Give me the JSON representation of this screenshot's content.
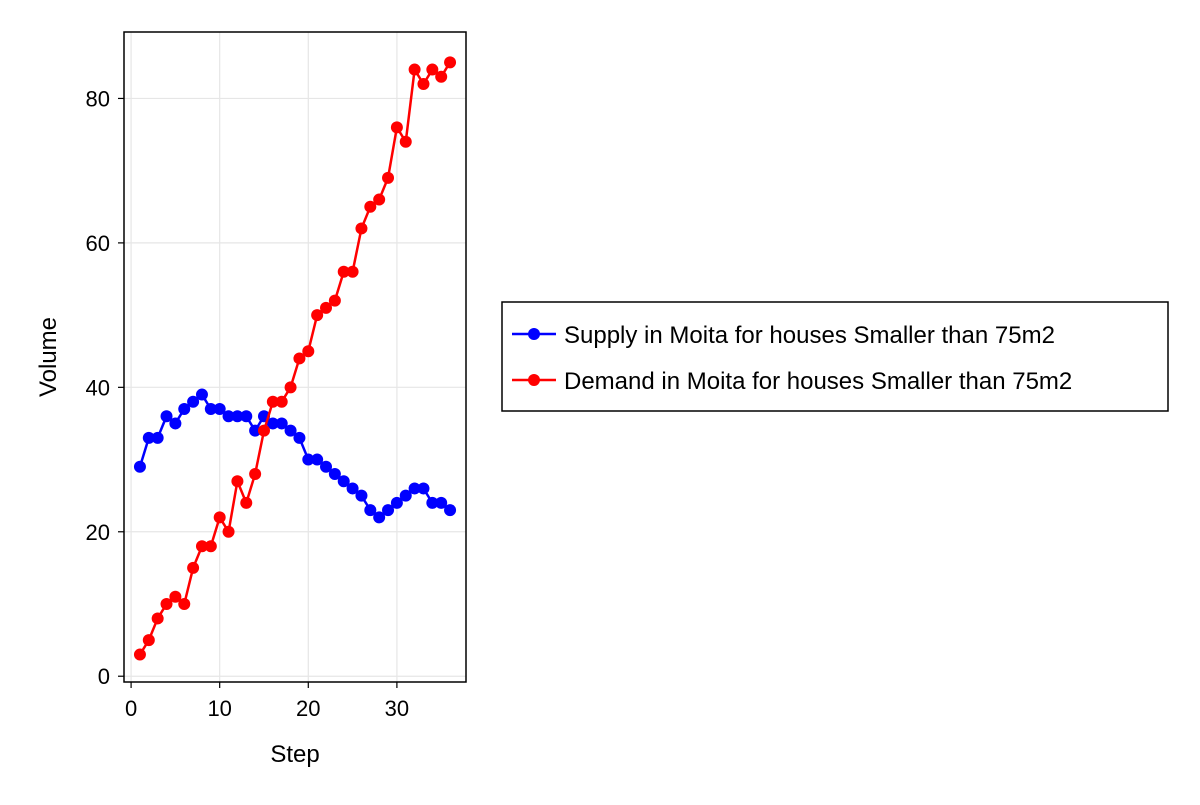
{
  "chart_data": {
    "type": "line",
    "title": "",
    "xlabel": "Step",
    "ylabel": "Volume",
    "xlim": [
      -0.8,
      37.8
    ],
    "ylim": [
      -0.8,
      89.2
    ],
    "xticks": [
      0,
      10,
      20,
      30
    ],
    "yticks": [
      0,
      20,
      40,
      60,
      80
    ],
    "grid": true,
    "legend_position": "right",
    "series": [
      {
        "name": "Supply in Moita for houses Smaller than 75m2",
        "color": "#0000ff",
        "x": [
          1,
          2,
          3,
          4,
          5,
          6,
          7,
          8,
          9,
          10,
          11,
          12,
          13,
          14,
          15,
          16,
          17,
          18,
          19,
          20,
          21,
          22,
          23,
          24,
          25,
          26,
          27,
          28,
          29,
          30,
          31,
          32,
          33,
          34,
          35,
          36
        ],
        "y": [
          29,
          33,
          33,
          36,
          35,
          37,
          38,
          39,
          37,
          37,
          36,
          36,
          36,
          34,
          36,
          35,
          35,
          34,
          33,
          30,
          30,
          29,
          28,
          27,
          26,
          25,
          23,
          22,
          23,
          24,
          25,
          26,
          26,
          24,
          24,
          23
        ]
      },
      {
        "name": "Demand in Moita for houses Smaller than 75m2",
        "color": "#ff0000",
        "x": [
          1,
          2,
          3,
          4,
          5,
          6,
          7,
          8,
          9,
          10,
          11,
          12,
          13,
          14,
          15,
          16,
          17,
          18,
          19,
          20,
          21,
          22,
          23,
          24,
          25,
          26,
          27,
          28,
          29,
          30,
          31,
          32,
          33,
          34,
          35,
          36
        ],
        "y": [
          3,
          5,
          8,
          10,
          11,
          10,
          15,
          18,
          18,
          22,
          20,
          27,
          24,
          28,
          34,
          38,
          38,
          40,
          44,
          45,
          50,
          51,
          52,
          56,
          56,
          62,
          65,
          66,
          69,
          76,
          74,
          84,
          82,
          84,
          83,
          85
        ]
      }
    ]
  }
}
